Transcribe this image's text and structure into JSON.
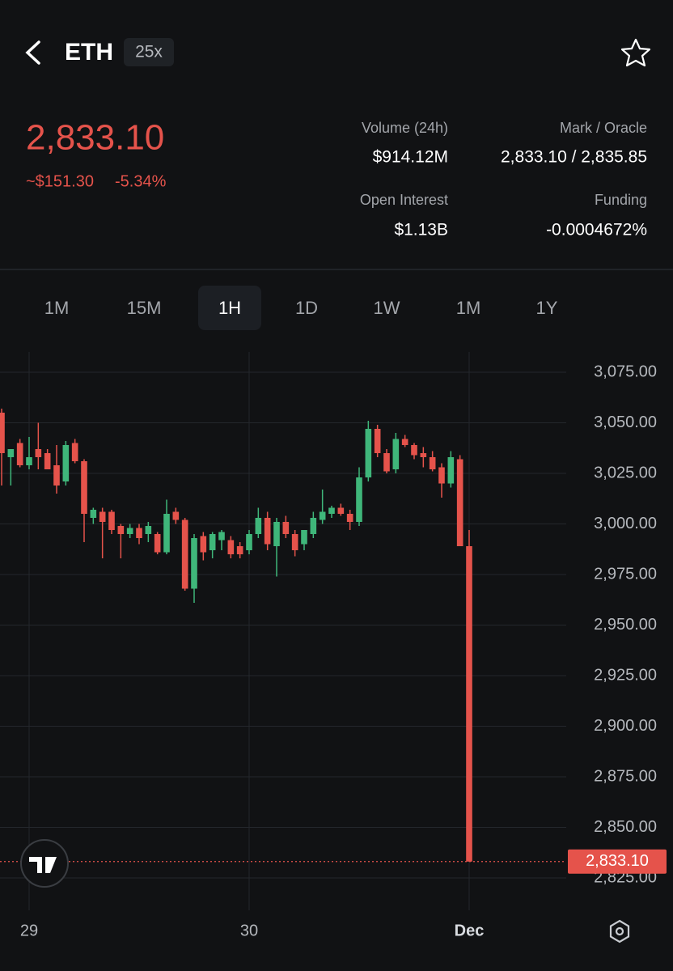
{
  "header": {
    "symbol": "ETH",
    "leverage": "25x",
    "price": "2,833.10",
    "change_abs": "~$151.30",
    "change_pct": "-5.34%",
    "stats": [
      {
        "label": "Volume (24h)",
        "value": "$914.12M"
      },
      {
        "label": "Mark / Oracle",
        "value": "2,833.10 / 2,835.85"
      },
      {
        "label": "Open Interest",
        "value": "$1.13B"
      },
      {
        "label": "Funding",
        "value": "-0.0004672%"
      }
    ]
  },
  "tabs": {
    "items": [
      "1M",
      "15M",
      "1H",
      "1D",
      "1W",
      "1M",
      "1Y"
    ],
    "active": 2
  },
  "chart_data": {
    "type": "candlestick",
    "up_color": "#3fb67a",
    "down_color": "#e5534b",
    "open": [
      3055,
      3033,
      3040,
      3029,
      3037,
      3035,
      3029,
      3021,
      3040,
      3031,
      3003,
      3006,
      3006,
      2999,
      2995,
      2998,
      2995,
      2995,
      2986,
      3006,
      3002,
      2968,
      2994,
      2987,
      2992,
      2992,
      2989,
      2987,
      2995,
      3003,
      2989,
      3001,
      2995,
      2990,
      2995,
      3002,
      3005,
      3008,
      3005,
      3001,
      3023,
      3047,
      3035,
      3027,
      3042,
      3039,
      3035,
      3033,
      3028,
      3020,
      3032,
      2989
    ],
    "high": [
      3057,
      3037,
      3042,
      3043,
      3050,
      3037,
      3039,
      3041,
      3042,
      3032,
      3008,
      3008,
      3007,
      3000,
      3000,
      3000,
      3001,
      2996,
      3012,
      3008,
      3003,
      2995,
      2996,
      2996,
      2997,
      2994,
      2991,
      2997,
      3008,
      3006,
      3003,
      3004,
      2997,
      2996,
      3006,
      3017,
      3009,
      3010,
      3007,
      3028,
      3051,
      3049,
      3037,
      3045,
      3044,
      3040,
      3038,
      3036,
      3030,
      3036,
      3034,
      2997
    ],
    "low": [
      3019,
      3019,
      3028,
      3027,
      3027,
      3027,
      3015,
      3019,
      3030,
      2991,
      3000,
      2983,
      2995,
      2983,
      2993,
      2990,
      2991,
      2985,
      2985,
      3000,
      2967,
      2961,
      2982,
      2983,
      2987,
      2983,
      2983,
      2985,
      2993,
      2987,
      2974,
      2993,
      2984,
      2987,
      2993,
      3000,
      3003,
      3004,
      2997,
      2999,
      3021,
      3033,
      3025,
      3025,
      3038,
      3032,
      3028,
      3026,
      3013,
      3018,
      2989,
      2833.1
    ],
    "close": [
      3035,
      3037,
      3029,
      3033,
      3033,
      3027,
      3019,
      3039,
      3031,
      3005,
      3007,
      3001,
      2997,
      2995,
      2998,
      2993,
      2999,
      2986,
      3005,
      3002,
      2968,
      2993,
      2986,
      2995,
      2996,
      2985,
      2985,
      2995,
      3003,
      2990,
      3001,
      2995,
      2987,
      2997,
      3003,
      3006,
      3008,
      3005,
      3001,
      3023,
      3047,
      3035,
      3026,
      3042,
      3039,
      3034,
      3033,
      3027,
      3020,
      3033,
      2989,
      2833.1
    ],
    "xticks": [
      {
        "value": 3,
        "label": "29"
      },
      {
        "value": 27,
        "label": "30"
      },
      {
        "value": 51,
        "label": "Dec"
      }
    ],
    "ylim": [
      2809,
      3085
    ],
    "yticks": [
      {
        "value": 2825,
        "label": "2,825.00"
      },
      {
        "value": 2850,
        "label": "2,850.00"
      },
      {
        "value": 2875,
        "label": "2,875.00"
      },
      {
        "value": 2900,
        "label": "2,900.00"
      },
      {
        "value": 2925,
        "label": "2,925.00"
      },
      {
        "value": 2950,
        "label": "2,950.00"
      },
      {
        "value": 2975,
        "label": "2,975.00"
      },
      {
        "value": 3000,
        "label": "3,000.00"
      },
      {
        "value": 3025,
        "label": "3,025.00"
      },
      {
        "value": 3050,
        "label": "3,050.00"
      },
      {
        "value": 3075,
        "label": "3,075.00"
      }
    ],
    "last_price": {
      "value": 2833.1,
      "label": "2,833.10"
    }
  }
}
